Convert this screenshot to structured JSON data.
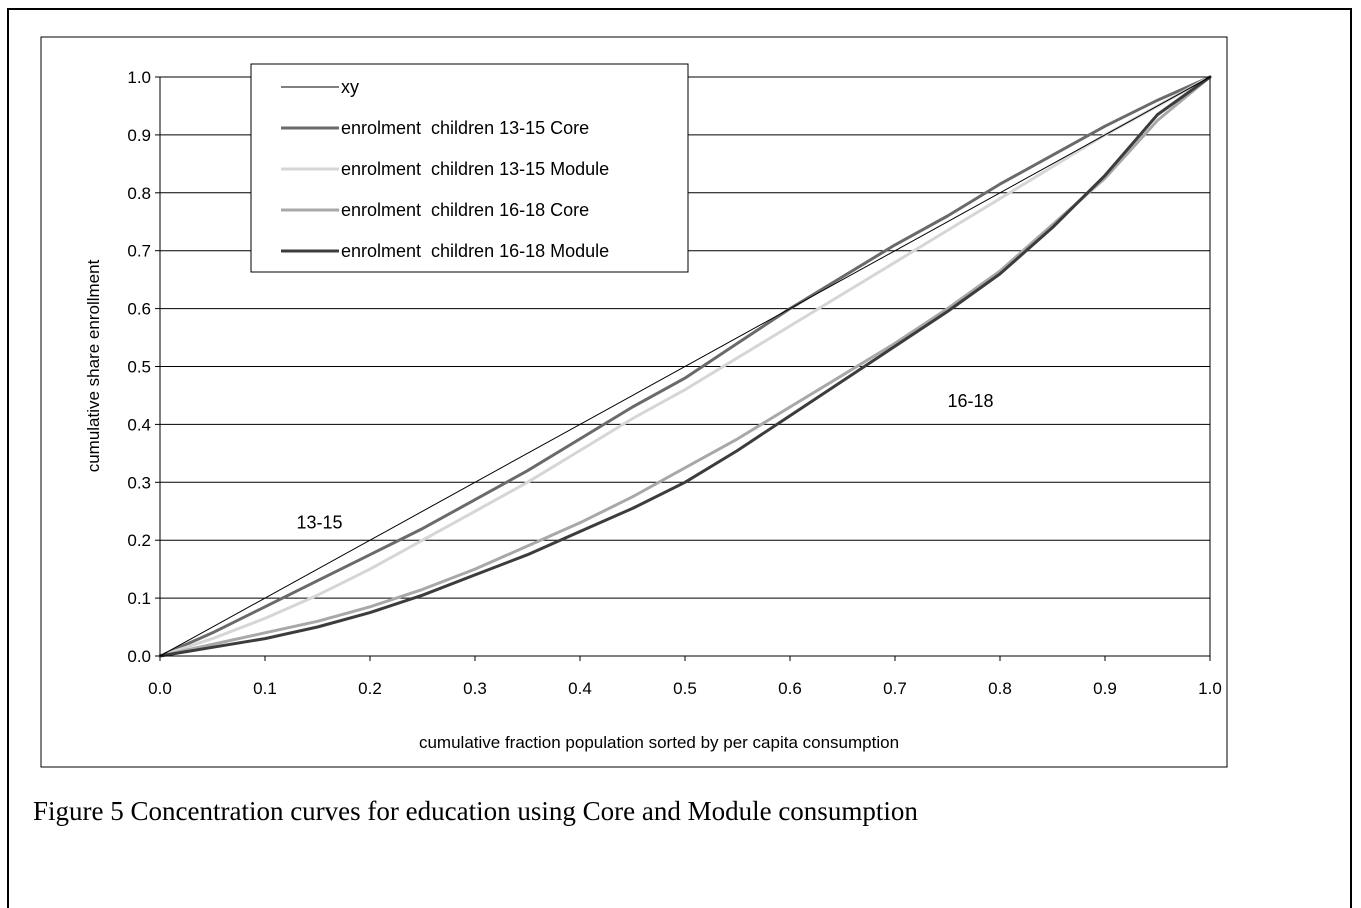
{
  "caption": "Figure 5 Concentration curves for education using Core and Module consumption",
  "chart_data": {
    "type": "line",
    "xlabel": "cumulative fraction population sorted by per capita consumption",
    "ylabel": "cumulative share enrollment",
    "xlim": [
      0,
      1
    ],
    "ylim": [
      0,
      1
    ],
    "x_ticks": [
      "0.0",
      "0.1",
      "0.2",
      "0.3",
      "0.4",
      "0.5",
      "0.6",
      "0.7",
      "0.8",
      "0.9",
      "1.0"
    ],
    "y_ticks": [
      "0.0",
      "0.1",
      "0.2",
      "0.3",
      "0.4",
      "0.5",
      "0.6",
      "0.7",
      "0.8",
      "0.9",
      "1.0"
    ],
    "grid": "horizontal",
    "legend_position": "top-left",
    "annotations": [
      {
        "text": "13-15",
        "x": 0.13,
        "y": 0.22
      },
      {
        "text": "16-18",
        "x": 0.75,
        "y": 0.43
      }
    ],
    "series": [
      {
        "name": "xy",
        "color": "#000000",
        "width": 1,
        "x": [
          0,
          1
        ],
        "y": [
          0,
          1
        ]
      },
      {
        "name": "enrolment  children 13-15 Core",
        "color": "#6a6a6a",
        "width": 3,
        "x": [
          0,
          0.05,
          0.1,
          0.15,
          0.2,
          0.25,
          0.3,
          0.35,
          0.4,
          0.45,
          0.5,
          0.55,
          0.6,
          0.65,
          0.7,
          0.75,
          0.8,
          0.85,
          0.9,
          0.95,
          1.0
        ],
        "y": [
          0,
          0.04,
          0.085,
          0.13,
          0.175,
          0.22,
          0.27,
          0.32,
          0.375,
          0.43,
          0.48,
          0.54,
          0.6,
          0.655,
          0.71,
          0.76,
          0.815,
          0.865,
          0.915,
          0.96,
          1.0
        ]
      },
      {
        "name": "enrolment  children 13-15 Module",
        "color": "#d6d6d6",
        "width": 3,
        "x": [
          0,
          0.05,
          0.1,
          0.15,
          0.2,
          0.25,
          0.3,
          0.35,
          0.4,
          0.45,
          0.5,
          0.55,
          0.6,
          0.65,
          0.7,
          0.75,
          0.8,
          0.85,
          0.9,
          0.95,
          1.0
        ],
        "y": [
          0,
          0.03,
          0.065,
          0.105,
          0.15,
          0.2,
          0.25,
          0.3,
          0.355,
          0.41,
          0.46,
          0.515,
          0.57,
          0.625,
          0.68,
          0.735,
          0.79,
          0.845,
          0.9,
          0.95,
          1.0
        ]
      },
      {
        "name": "enrolment  children 16-18 Core",
        "color": "#a8a8a8",
        "width": 3,
        "x": [
          0,
          0.05,
          0.1,
          0.15,
          0.2,
          0.25,
          0.3,
          0.35,
          0.4,
          0.45,
          0.5,
          0.55,
          0.6,
          0.65,
          0.7,
          0.75,
          0.8,
          0.85,
          0.9,
          0.95,
          1.0
        ],
        "y": [
          0,
          0.02,
          0.04,
          0.06,
          0.085,
          0.115,
          0.15,
          0.19,
          0.23,
          0.275,
          0.325,
          0.375,
          0.43,
          0.485,
          0.54,
          0.6,
          0.665,
          0.745,
          0.825,
          0.925,
          1.0
        ]
      },
      {
        "name": "enrolment  children 16-18 Module",
        "color": "#3c3c3c",
        "width": 3,
        "x": [
          0,
          0.05,
          0.1,
          0.15,
          0.2,
          0.25,
          0.3,
          0.35,
          0.4,
          0.45,
          0.5,
          0.55,
          0.6,
          0.65,
          0.7,
          0.75,
          0.8,
          0.85,
          0.9,
          0.95,
          1.0
        ],
        "y": [
          0,
          0.015,
          0.03,
          0.05,
          0.075,
          0.105,
          0.14,
          0.175,
          0.215,
          0.255,
          0.3,
          0.355,
          0.415,
          0.475,
          0.535,
          0.595,
          0.66,
          0.74,
          0.83,
          0.935,
          1.0
        ]
      }
    ]
  }
}
